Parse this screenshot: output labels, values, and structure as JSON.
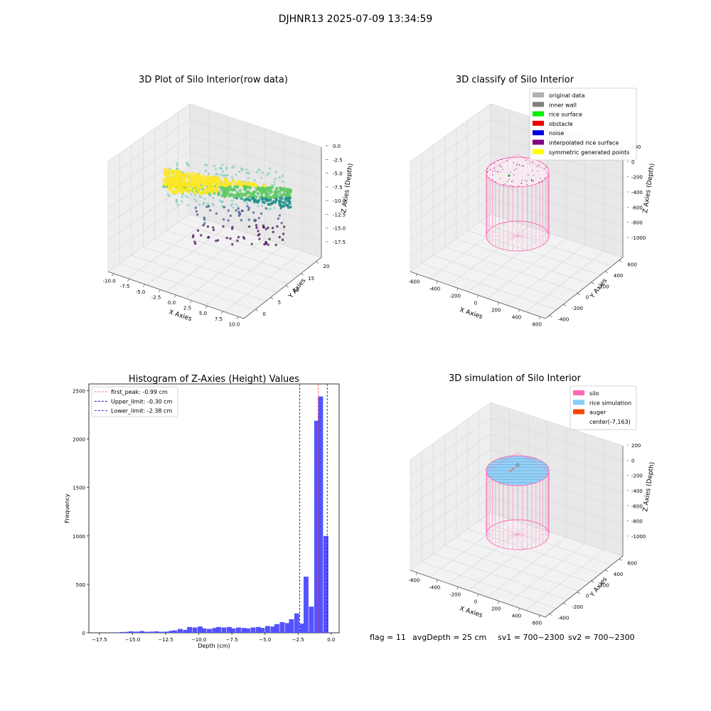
{
  "figure_title": "DJHNR13 2025-07-09 13:34:59",
  "footer": {
    "flag": "flag = 11",
    "avg_depth": "avgDepth = 25 cm",
    "sv1": "sv1 = 700~2300",
    "sv2": "sv2 = 700~2300"
  },
  "colors": {
    "hist_bar": "#4b4bff",
    "first_peak": "#ff3b3b",
    "limits": "#0000cc",
    "silo": "#ff69b4",
    "rice_simulation": "#87cefa",
    "auger": "#ff4500",
    "grid": "#d9d9d9",
    "pane": "#f2f2f2"
  },
  "chart_data": [
    {
      "type": "scatter",
      "subtype": "3d",
      "title": "3D Plot of Silo Interior(row data)",
      "xlabel": "X Axies",
      "ylabel": "Y Axies",
      "zlabel": "Z Axies (Depth)",
      "xlim": [
        -10,
        10
      ],
      "ylim": [
        -2,
        22
      ],
      "zlim": [
        -18,
        0.5
      ],
      "xticks": [
        "-10.0",
        "-7.5",
        "-5.0",
        "-2.5",
        "0.0",
        "2.5",
        "5.0",
        "7.5",
        "10.0"
      ],
      "yticks": [
        "0",
        "5",
        "10",
        "15",
        "20"
      ],
      "zticks": [
        "0.0",
        "-2.5",
        "-5.0",
        "-7.5",
        "-10.0",
        "-12.5",
        "-15.0",
        "-17.5"
      ],
      "colormap": "viridis"
    },
    {
      "type": "scatter",
      "subtype": "3d",
      "title": "3D classify of Silo Interior",
      "xlabel": "X Axies",
      "ylabel": "Y Axies",
      "zlabel": "Z Axies (Depth)",
      "xticks": [
        "-600",
        "-400",
        "-200",
        "0",
        "200",
        "400",
        "600"
      ],
      "yticks": [
        "-400",
        "-200",
        "0",
        "200",
        "400",
        "600"
      ],
      "zticks": [
        "200",
        "0",
        "-200",
        "-400",
        "-600",
        "-800",
        "-1000"
      ],
      "legend_position": "top-right",
      "legend": [
        {
          "label": "original data",
          "color": "#b0b0b0"
        },
        {
          "label": "inner wall",
          "color": "#808080"
        },
        {
          "label": "rice surface",
          "color": "#00ee00"
        },
        {
          "label": "obstacle",
          "color": "#ee0000"
        },
        {
          "label": "noise",
          "color": "#0000dd"
        },
        {
          "label": "interpolated rice surface",
          "color": "#800080"
        },
        {
          "label": "symmetric generated points",
          "color": "#ffff00"
        }
      ]
    },
    {
      "type": "bar",
      "subtype": "histogram",
      "title": "Histogram of Z-Axies (Height) Values",
      "xlabel": "Depth (cm)",
      "ylabel": "Frequency",
      "xlim": [
        -18.3,
        0.6
      ],
      "ylim": [
        0,
        2570
      ],
      "xticks": [
        -17.5,
        -15,
        -12.5,
        -10,
        -7.5,
        -5,
        -2.5,
        0
      ],
      "xtick_labels": [
        "−17.5",
        "−15.0",
        "−12.5",
        "−10.0",
        "−7.5",
        "−5.0",
        "−2.5",
        "0.0"
      ],
      "yticks": [
        0,
        500,
        1000,
        1500,
        2000,
        2500
      ],
      "bin_width": 0.37,
      "bin_centers": [
        -16.2,
        -15.8,
        -15.4,
        -15.1,
        -14.7,
        -14.3,
        -14.0,
        -13.6,
        -13.2,
        -12.9,
        -12.5,
        -12.1,
        -11.8,
        -11.4,
        -11.0,
        -10.7,
        -10.3,
        -9.9,
        -9.6,
        -9.2,
        -8.8,
        -8.5,
        -8.1,
        -7.7,
        -7.4,
        -7.0,
        -6.6,
        -6.3,
        -5.9,
        -5.5,
        -5.2,
        -4.8,
        -4.4,
        -4.1,
        -3.7,
        -3.3,
        -3.0,
        -2.6,
        -2.2,
        -1.9,
        -1.5,
        -1.1,
        -0.8,
        -0.4
      ],
      "values": [
        5,
        8,
        10,
        15,
        12,
        18,
        10,
        12,
        15,
        10,
        12,
        20,
        25,
        40,
        30,
        60,
        55,
        65,
        45,
        40,
        50,
        60,
        55,
        60,
        45,
        55,
        50,
        45,
        55,
        60,
        50,
        70,
        65,
        90,
        110,
        100,
        140,
        200,
        95,
        580,
        270,
        2190,
        2440,
        1000
      ],
      "vlines": [
        {
          "label": "first_peak: -0.99 cm",
          "x": -0.99,
          "style": "first_peak"
        },
        {
          "label": "Upper_limit: -0.30 cm",
          "x": -0.3,
          "style": "limits"
        },
        {
          "label": "Lower_limit: -2.38 cm",
          "x": -2.38,
          "style": "limits"
        }
      ],
      "legend_position": "top-left"
    },
    {
      "type": "scatter",
      "subtype": "3d",
      "title": "3D simulation of Silo Interior",
      "xlabel": "X Axies",
      "ylabel": "Y Axies",
      "zlabel": "Z Axies (Depth)",
      "xticks": [
        "-600",
        "-400",
        "-200",
        "0",
        "200",
        "400",
        "600"
      ],
      "yticks": [
        "-400",
        "-200",
        "0",
        "200",
        "400",
        "600"
      ],
      "zticks": [
        "200",
        "0",
        "-200",
        "-400",
        "-600",
        "-800",
        "-1000"
      ],
      "legend_position": "top-right",
      "legend": [
        {
          "label": "silo",
          "color": "#ff69b4"
        },
        {
          "label": "rice simulation",
          "color": "#87cefa"
        },
        {
          "label": "auger",
          "color": "#ff4500"
        },
        {
          "label": "center(-7,163)",
          "color": ""
        }
      ]
    }
  ]
}
